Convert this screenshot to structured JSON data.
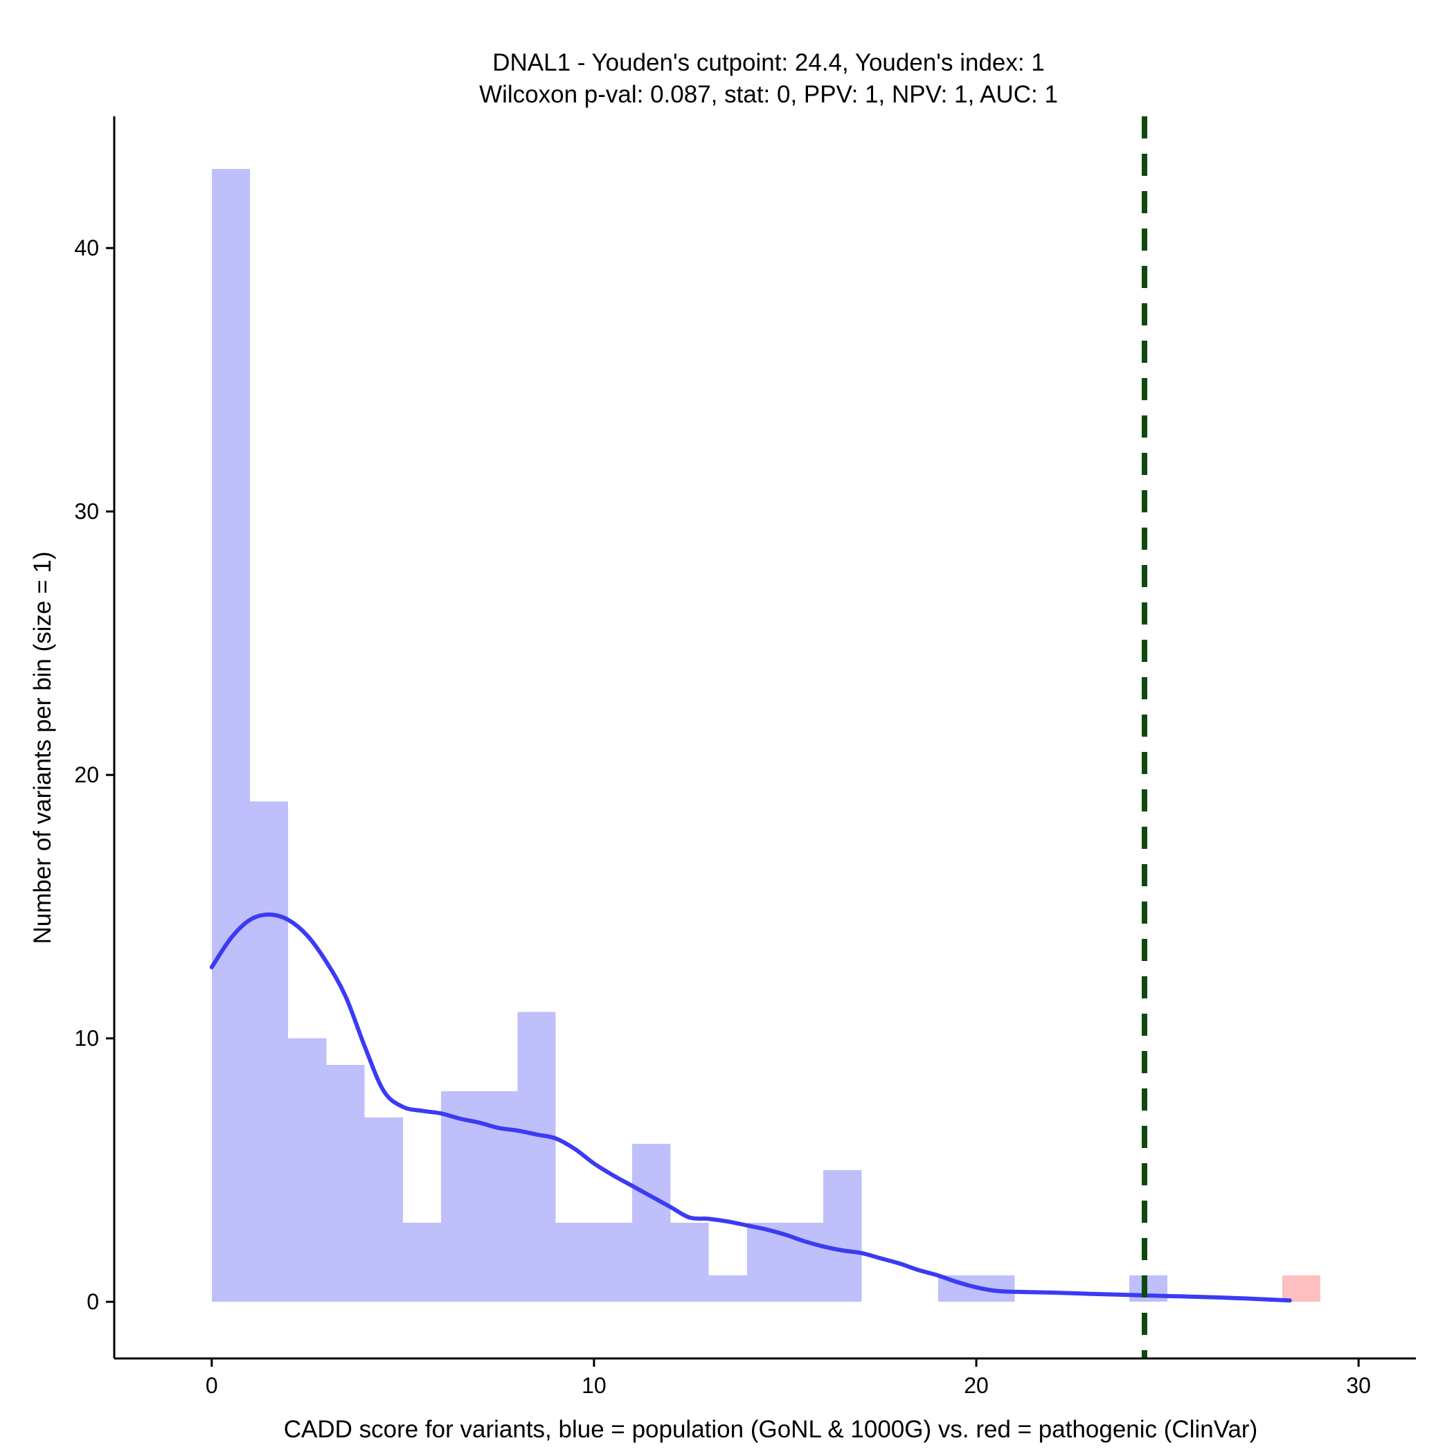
{
  "chart_data": {
    "type": "bar",
    "title_line1": "DNAL1 - Youden's cutpoint: 24.4, Youden's index: 1",
    "title_line2": "Wilcoxon p-val: 0.087, stat: 0, PPV: 1, NPV: 1, AUC: 1",
    "xlabel": "CADD score for variants, blue = population (GoNL & 1000G) vs. red = pathogenic (ClinVar)",
    "ylabel": "Number of variants per bin (size = 1)",
    "xlim": [
      -2.55,
      31.5
    ],
    "ylim": [
      -2.15,
      45.0
    ],
    "x_ticks": [
      0,
      10,
      20,
      30
    ],
    "y_ticks": [
      0,
      10,
      20,
      30,
      40
    ],
    "bin_width": 1,
    "grid": false,
    "cutpoint": 24.4,
    "colors": {
      "population": "#bfbffb",
      "pathogenic": "#fdbfbf",
      "density": "#3b3bf2",
      "cutpoint": "#0e4a0e"
    },
    "series": [
      {
        "name": "population",
        "bins": [
          {
            "start": 0,
            "count": 43
          },
          {
            "start": 1,
            "count": 19
          },
          {
            "start": 2,
            "count": 10
          },
          {
            "start": 3,
            "count": 9
          },
          {
            "start": 4,
            "count": 7
          },
          {
            "start": 5,
            "count": 3
          },
          {
            "start": 6,
            "count": 8
          },
          {
            "start": 7,
            "count": 8
          },
          {
            "start": 8,
            "count": 11
          },
          {
            "start": 9,
            "count": 3
          },
          {
            "start": 10,
            "count": 3
          },
          {
            "start": 11,
            "count": 6
          },
          {
            "start": 12,
            "count": 3
          },
          {
            "start": 13,
            "count": 1
          },
          {
            "start": 14,
            "count": 3
          },
          {
            "start": 15,
            "count": 3
          },
          {
            "start": 16,
            "count": 5
          },
          {
            "start": 19,
            "count": 1
          },
          {
            "start": 20,
            "count": 1
          },
          {
            "start": 24,
            "count": 1
          }
        ]
      },
      {
        "name": "pathogenic",
        "bins": [
          {
            "start": 28,
            "count": 1
          }
        ]
      }
    ],
    "density_curve": [
      [
        0,
        12.7
      ],
      [
        0.5,
        13.8
      ],
      [
        1,
        14.5
      ],
      [
        1.5,
        14.7
      ],
      [
        2,
        14.5
      ],
      [
        2.5,
        13.9
      ],
      [
        3,
        12.9
      ],
      [
        3.5,
        11.6
      ],
      [
        4,
        9.7
      ],
      [
        4.5,
        8.0
      ],
      [
        5,
        7.4
      ],
      [
        5.5,
        7.25
      ],
      [
        6,
        7.15
      ],
      [
        6.5,
        6.95
      ],
      [
        7,
        6.8
      ],
      [
        7.5,
        6.6
      ],
      [
        8,
        6.5
      ],
      [
        8.5,
        6.35
      ],
      [
        9,
        6.2
      ],
      [
        9.5,
        5.8
      ],
      [
        10,
        5.25
      ],
      [
        10.5,
        4.8
      ],
      [
        11,
        4.4
      ],
      [
        11.5,
        4.0
      ],
      [
        12,
        3.6
      ],
      [
        12.5,
        3.2
      ],
      [
        13,
        3.15
      ],
      [
        13.5,
        3.05
      ],
      [
        14,
        2.9
      ],
      [
        14.5,
        2.75
      ],
      [
        15,
        2.55
      ],
      [
        15.5,
        2.3
      ],
      [
        16,
        2.1
      ],
      [
        16.5,
        1.95
      ],
      [
        17,
        1.85
      ],
      [
        17.5,
        1.65
      ],
      [
        18,
        1.45
      ],
      [
        18.5,
        1.2
      ],
      [
        19,
        1.0
      ],
      [
        19.5,
        0.75
      ],
      [
        20,
        0.55
      ],
      [
        20.5,
        0.42
      ],
      [
        21,
        0.38
      ],
      [
        22,
        0.35
      ],
      [
        23,
        0.3
      ],
      [
        24,
        0.26
      ],
      [
        25,
        0.22
      ],
      [
        26,
        0.18
      ],
      [
        27,
        0.13
      ],
      [
        28.2,
        0.05
      ]
    ]
  }
}
